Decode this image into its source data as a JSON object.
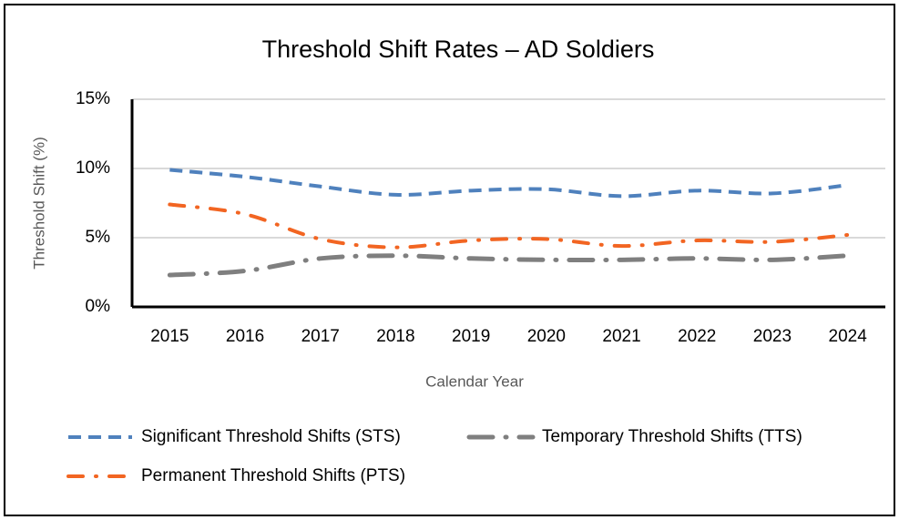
{
  "chart_data": {
    "type": "line",
    "title": "Threshold Shift Rates – AD Soldiers",
    "x_label": "Calendar Year",
    "y_label": "Threshold Shift (%)",
    "categories": [
      "2015",
      "2016",
      "2017",
      "2018",
      "2019",
      "2020",
      "2021",
      "2022",
      "2023",
      "2024"
    ],
    "series": [
      {
        "name": "Significant Threshold Shifts (STS)",
        "color": "#4f81bd",
        "dash": "dash",
        "values": [
          9.9,
          9.4,
          8.7,
          8.1,
          8.4,
          8.5,
          8.0,
          8.4,
          8.2,
          8.8
        ]
      },
      {
        "name": "Temporary Threshold Shifts (TTS)",
        "color": "#7f7f7f",
        "dash": "long-dash-dot",
        "values": [
          2.3,
          2.6,
          3.5,
          3.7,
          3.5,
          3.4,
          3.4,
          3.5,
          3.4,
          3.7
        ]
      },
      {
        "name": "Permanent Threshold Shifts (PTS)",
        "color": "#f26522",
        "dash": "dash-dot",
        "values": [
          7.4,
          6.7,
          4.9,
          4.3,
          4.8,
          4.9,
          4.4,
          4.8,
          4.7,
          5.2
        ]
      }
    ],
    "ylim": [
      0,
      15
    ],
    "yticks": [
      {
        "value": 0,
        "label": "0%"
      },
      {
        "value": 5,
        "label": "5%"
      },
      {
        "value": 10,
        "label": "10%"
      },
      {
        "value": 15,
        "label": "15%"
      }
    ],
    "grid": true,
    "smooth": true,
    "legend": "bottom"
  }
}
